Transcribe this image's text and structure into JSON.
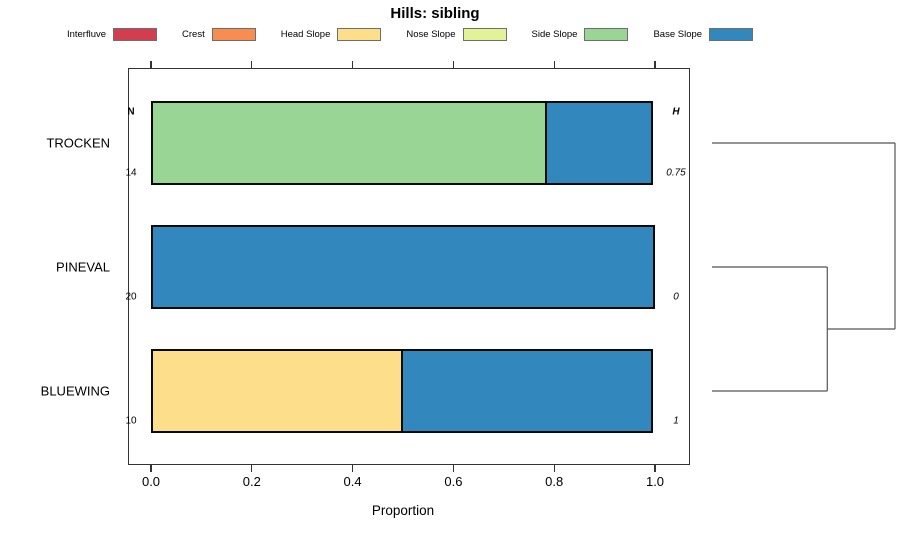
{
  "title": "Hills: sibling",
  "legend": {
    "items": [
      {
        "label": "Interfluve",
        "color": "#D23E4E"
      },
      {
        "label": "Crest",
        "color": "#F88D51"
      },
      {
        "label": "Head Slope",
        "color": "#FDDF8B"
      },
      {
        "label": "Nose Slope",
        "color": "#E2F297"
      },
      {
        "label": "Side Slope",
        "color": "#99D594"
      },
      {
        "label": "Base Slope",
        "color": "#3287BC"
      }
    ]
  },
  "chart_data": {
    "type": "bar",
    "variant": "horizontal-stacked-proportion",
    "title": "Hills: sibling",
    "xlabel": "Proportion",
    "xlim": [
      0,
      1
    ],
    "xticks": [
      0.0,
      0.2,
      0.4,
      0.6,
      0.8,
      1.0
    ],
    "xtick_labels": [
      "0.0",
      "0.2",
      "0.4",
      "0.6",
      "0.8",
      "1.0"
    ],
    "grid": false,
    "legend_position": "top",
    "categories": [
      "TROCKEN",
      "PINEVAL",
      "BLUEWING"
    ],
    "columns": {
      "n_header": "N",
      "h_header": "H"
    },
    "rows": [
      {
        "label": "TROCKEN",
        "n": "14",
        "h": "0.75",
        "segments": [
          {
            "class": "Side Slope",
            "value": 0.786
          },
          {
            "class": "Base Slope",
            "value": 0.214
          }
        ]
      },
      {
        "label": "PINEVAL",
        "n": "20",
        "h": "0",
        "segments": [
          {
            "class": "Base Slope",
            "value": 1.0
          }
        ]
      },
      {
        "label": "BLUEWING",
        "n": "10",
        "h": "1",
        "segments": [
          {
            "class": "Head Slope",
            "value": 0.5
          },
          {
            "class": "Base Slope",
            "value": 0.5
          }
        ]
      }
    ],
    "dendrogram": {
      "leaves": [
        "TROCKEN",
        "PINEVAL",
        "BLUEWING"
      ],
      "merges": [
        {
          "members": [
            "PINEVAL",
            "BLUEWING"
          ],
          "x_frac": 0.63
        },
        {
          "members": [
            "PINEVAL+BLUEWING",
            "TROCKEN"
          ],
          "x_frac": 1.0
        }
      ]
    }
  }
}
